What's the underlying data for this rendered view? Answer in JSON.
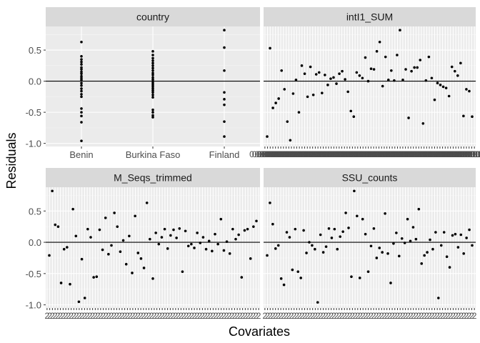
{
  "chart_data": {
    "type": "scatter",
    "layout": "facet-wrap 2x2, free x scales, shared y axis",
    "xlabel": "Covariates",
    "ylabel": "Residuals",
    "ylim": [
      -1.05,
      0.88
    ],
    "y_ticks": [
      -1.0,
      -0.5,
      0.0,
      0.5
    ],
    "y_tick_labels": [
      "-1.0",
      "-0.5",
      "0.0",
      "0.5"
    ],
    "reference_line": 0,
    "grid": true,
    "panels": [
      {
        "strip": "country",
        "x_type": "categorical",
        "categories": [
          "Benin",
          "Burkina Faso",
          "Finland"
        ],
        "points": [
          {
            "x": "Benin",
            "y": 0.63
          },
          {
            "x": "Benin",
            "y": 0.4
          },
          {
            "x": "Benin",
            "y": 0.35
          },
          {
            "x": "Benin",
            "y": 0.31
          },
          {
            "x": "Benin",
            "y": 0.27
          },
          {
            "x": "Benin",
            "y": 0.22
          },
          {
            "x": "Benin",
            "y": 0.19
          },
          {
            "x": "Benin",
            "y": 0.15
          },
          {
            "x": "Benin",
            "y": 0.12
          },
          {
            "x": "Benin",
            "y": 0.08
          },
          {
            "x": "Benin",
            "y": 0.05
          },
          {
            "x": "Benin",
            "y": 0.02
          },
          {
            "x": "Benin",
            "y": -0.03
          },
          {
            "x": "Benin",
            "y": -0.07
          },
          {
            "x": "Benin",
            "y": -0.12
          },
          {
            "x": "Benin",
            "y": -0.16
          },
          {
            "x": "Benin",
            "y": -0.21
          },
          {
            "x": "Benin",
            "y": -0.25
          },
          {
            "x": "Benin",
            "y": -0.44
          },
          {
            "x": "Benin",
            "y": -0.5
          },
          {
            "x": "Benin",
            "y": -0.56
          },
          {
            "x": "Benin",
            "y": -0.66
          },
          {
            "x": "Benin",
            "y": -0.96
          },
          {
            "x": "Burkina Faso",
            "y": 0.48
          },
          {
            "x": "Burkina Faso",
            "y": 0.42
          },
          {
            "x": "Burkina Faso",
            "y": 0.37
          },
          {
            "x": "Burkina Faso",
            "y": 0.33
          },
          {
            "x": "Burkina Faso",
            "y": 0.29
          },
          {
            "x": "Burkina Faso",
            "y": 0.25
          },
          {
            "x": "Burkina Faso",
            "y": 0.21
          },
          {
            "x": "Burkina Faso",
            "y": 0.17
          },
          {
            "x": "Burkina Faso",
            "y": 0.13
          },
          {
            "x": "Burkina Faso",
            "y": 0.1
          },
          {
            "x": "Burkina Faso",
            "y": 0.06
          },
          {
            "x": "Burkina Faso",
            "y": 0.03
          },
          {
            "x": "Burkina Faso",
            "y": 0.0
          },
          {
            "x": "Burkina Faso",
            "y": -0.03
          },
          {
            "x": "Burkina Faso",
            "y": -0.06
          },
          {
            "x": "Burkina Faso",
            "y": -0.09
          },
          {
            "x": "Burkina Faso",
            "y": -0.12
          },
          {
            "x": "Burkina Faso",
            "y": -0.15
          },
          {
            "x": "Burkina Faso",
            "y": -0.18
          },
          {
            "x": "Burkina Faso",
            "y": -0.22
          },
          {
            "x": "Burkina Faso",
            "y": -0.26
          },
          {
            "x": "Burkina Faso",
            "y": -0.46
          },
          {
            "x": "Burkina Faso",
            "y": -0.5
          },
          {
            "x": "Burkina Faso",
            "y": -0.55
          },
          {
            "x": "Burkina Faso",
            "y": -0.58
          },
          {
            "x": "Finland",
            "y": 0.82
          },
          {
            "x": "Finland",
            "y": 0.54
          },
          {
            "x": "Finland",
            "y": 0.17
          },
          {
            "x": "Finland",
            "y": -0.18
          },
          {
            "x": "Finland",
            "y": -0.29
          },
          {
            "x": "Finland",
            "y": -0.38
          },
          {
            "x": "Finland",
            "y": -0.65
          },
          {
            "x": "Finland",
            "y": -0.89
          }
        ]
      },
      {
        "strip": "intI1_SUM",
        "x_type": "index",
        "x_tick_count": 80,
        "x_tick_label_text": "0.00001",
        "y": [
          -0.89,
          0.53,
          -0.43,
          -0.35,
          -0.28,
          0.17,
          -0.13,
          -0.65,
          -0.95,
          -0.2,
          0.02,
          -0.5,
          0.25,
          0.12,
          -0.25,
          0.23,
          -0.22,
          0.11,
          0.14,
          -0.19,
          0.1,
          -0.06,
          0.04,
          0.06,
          -0.04,
          0.12,
          0.16,
          0.03,
          -0.17,
          -0.48,
          -0.57,
          0.14,
          0.09,
          0.05,
          0.38,
          0.0,
          0.2,
          0.19,
          0.48,
          0.63,
          -0.08,
          0.39,
          0.02,
          0.17,
          0.01,
          0.42,
          0.82,
          0.02,
          0.19,
          -0.59,
          0.16,
          0.22,
          0.22,
          0.34,
          -0.68,
          0.01,
          0.39,
          0.05,
          -0.3,
          -0.03,
          -0.06,
          -0.09,
          -0.11,
          -0.24,
          0.23,
          0.16,
          0.09,
          0.29,
          -0.56,
          -0.13,
          -0.16,
          -0.57
        ]
      },
      {
        "strip": "M_Seqs_trimmed",
        "x_type": "index",
        "x_tick_count": 80,
        "x_tick_label_text": "2",
        "y": [
          -0.21,
          0.82,
          0.28,
          0.25,
          -0.65,
          -0.11,
          -0.08,
          -0.67,
          0.53,
          0.1,
          -0.95,
          -0.27,
          -0.89,
          0.21,
          0.08,
          -0.56,
          -0.55,
          0.2,
          -0.12,
          0.39,
          -0.19,
          -0.05,
          0.47,
          0.25,
          -0.15,
          0.03,
          -0.35,
          0.1,
          -0.49,
          0.42,
          -0.17,
          -0.26,
          -0.41,
          0.63,
          0.05,
          -0.58,
          0.15,
          -0.03,
          0.08,
          0.21,
          -0.1,
          0.11,
          0.2,
          0.07,
          0.22,
          -0.47,
          0.18,
          -0.06,
          -0.03,
          -0.09,
          0.15,
          -0.01,
          0.08,
          -0.11,
          0.02,
          -0.14,
          0.13,
          -0.03,
          0.37,
          -0.13,
          0.01,
          -0.18,
          0.21,
          0.05,
          0.12,
          -0.56,
          0.19,
          0.21,
          -0.26,
          0.25,
          0.34
        ]
      },
      {
        "strip": "SSU_counts",
        "x_type": "index",
        "x_tick_count": 80,
        "x_tick_label_text": "2",
        "y": [
          -0.21,
          0.63,
          0.29,
          -0.1,
          -0.05,
          -0.58,
          -0.68,
          0.16,
          0.08,
          -0.44,
          0.21,
          -0.47,
          -0.57,
          0.19,
          -0.17,
          0.0,
          -0.05,
          -0.11,
          -0.96,
          0.12,
          -0.16,
          -0.07,
          0.22,
          0.07,
          0.21,
          -0.11,
          0.09,
          0.17,
          0.47,
          0.23,
          -0.55,
          0.82,
          0.42,
          -0.57,
          0.37,
          0.13,
          -0.47,
          -0.06,
          0.22,
          -0.25,
          -0.09,
          -0.16,
          0.46,
          -0.18,
          -0.65,
          -0.02,
          0.15,
          -0.22,
          0.06,
          -0.01,
          0.37,
          0.02,
          0.24,
          0.05,
          0.53,
          -0.34,
          -0.21,
          -0.16,
          0.04,
          -0.11,
          0.16,
          -0.89,
          -0.05,
          0.16,
          -0.23,
          -0.4,
          0.11,
          0.13,
          -0.08,
          0.12,
          -0.18,
          0.07,
          0.2,
          -0.05
        ]
      }
    ]
  }
}
